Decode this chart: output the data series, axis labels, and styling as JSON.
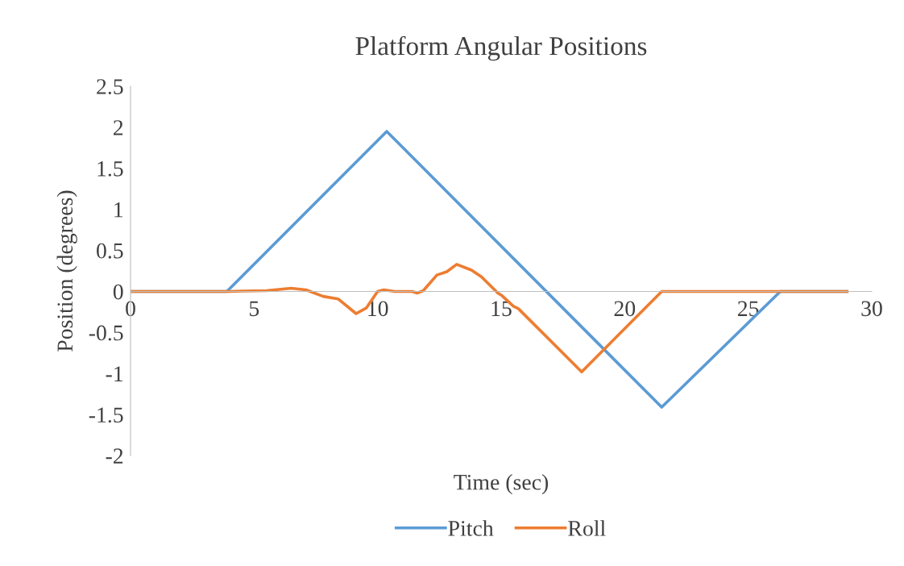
{
  "chart_data": {
    "type": "line",
    "title": "Platform Angular Positions",
    "xlabel": "Time (sec)",
    "ylabel": "Position (degrees)",
    "xlim": [
      0,
      30
    ],
    "xticks": [
      0,
      5,
      10,
      15,
      20,
      25,
      30
    ],
    "ylim": [
      -2,
      2.5
    ],
    "yticks": [
      -2,
      -1.5,
      -1,
      -0.5,
      0,
      0.5,
      1,
      1.5,
      2,
      2.5
    ],
    "grid": false,
    "legend": "bottom",
    "marker": "none",
    "line_style": "solid",
    "series": [
      {
        "name": "Pitch",
        "color": "#5b9bd5",
        "x": [
          0,
          3.9,
          10.37,
          21.5,
          26.3,
          29
        ],
        "values": [
          0,
          0,
          1.95,
          -1.41,
          0,
          0
        ]
      },
      {
        "name": "Roll",
        "color": "#ed7d31",
        "x": [
          0,
          4,
          4.5,
          5.5,
          6.5,
          7.1,
          7.8,
          8.4,
          9.13,
          9.55,
          10.0,
          10.25,
          10.7,
          11.4,
          11.6,
          11.85,
          12.4,
          12.8,
          13.2,
          13.8,
          14.2,
          14.87,
          15.03,
          15.5,
          15.7,
          18.26,
          21.5,
          29
        ],
        "values": [
          0,
          0,
          0.005,
          0.01,
          0.04,
          0.02,
          -0.06,
          -0.09,
          -0.27,
          -0.2,
          0,
          0.02,
          0,
          0,
          -0.02,
          0.01,
          0.2,
          0.24,
          0.33,
          0.26,
          0.18,
          -0.02,
          -0.05,
          -0.18,
          -0.21,
          -0.98,
          0,
          0
        ]
      }
    ]
  }
}
